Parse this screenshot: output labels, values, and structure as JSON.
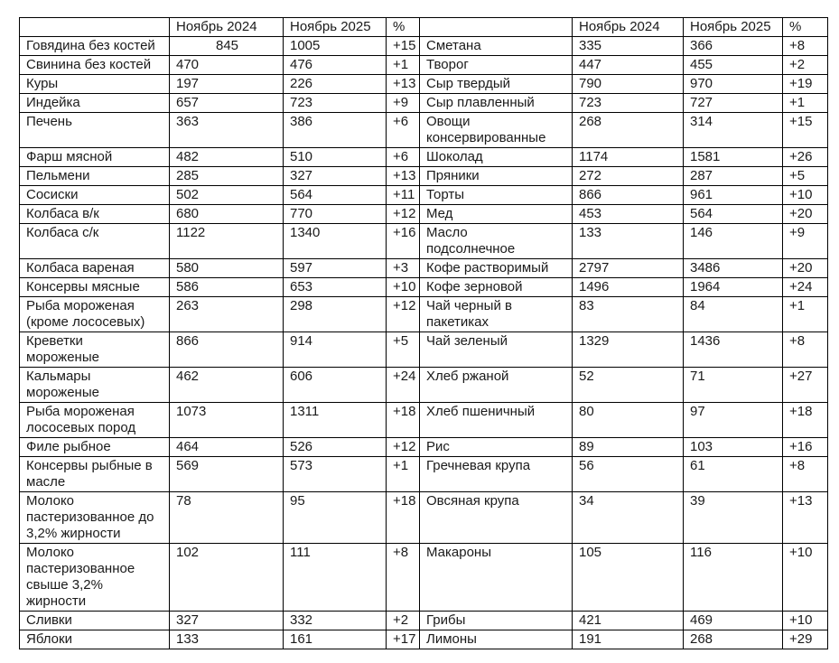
{
  "page": {
    "background_color": "#ffffff",
    "text_color": "#1a1a1a",
    "border_color": "#000000"
  },
  "table": {
    "column_headers": {
      "item": "",
      "period_2024": "Ноябрь 2024",
      "period_2025": "Ноябрь 2025",
      "percent": "%"
    },
    "rows": [
      {
        "left": {
          "name": "Говядина без костей",
          "p2024": "845",
          "p2025": "1005",
          "pct": "+15",
          "center2024": true
        },
        "right": {
          "name": "Сметана",
          "p2024": "335",
          "p2025": "366",
          "pct": "+8"
        }
      },
      {
        "left": {
          "name": "Свинина без костей",
          "p2024": "470",
          "p2025": "476",
          "pct": "+1"
        },
        "right": {
          "name": "Творог",
          "p2024": "447",
          "p2025": "455",
          "pct": "+2"
        }
      },
      {
        "left": {
          "name": "Куры",
          "p2024": "197",
          "p2025": "226",
          "pct": "+13"
        },
        "right": {
          "name": "Сыр твердый",
          "p2024": "790",
          "p2025": "970",
          "pct": "+19"
        }
      },
      {
        "left": {
          "name": "Индейка",
          "p2024": "657",
          "p2025": "723",
          "pct": "+9"
        },
        "right": {
          "name": "Сыр плавленный",
          "p2024": "723",
          "p2025": "727",
          "pct": "+1"
        }
      },
      {
        "left": {
          "name": "Печень",
          "p2024": "363",
          "p2025": "386",
          "pct": "+6"
        },
        "right": {
          "name": "Овощи\nконсервированные",
          "p2024": "268",
          "p2025": "314",
          "pct": "+15"
        }
      },
      {
        "left": {
          "name": "Фарш мясной",
          "p2024": "482",
          "p2025": "510",
          "pct": "+6"
        },
        "right": {
          "name": "Шоколад",
          "p2024": "1174",
          "p2025": "1581",
          "pct": "+26"
        }
      },
      {
        "left": {
          "name": "Пельмени",
          "p2024": "285",
          "p2025": "327",
          "pct": "+13"
        },
        "right": {
          "name": "Пряники",
          "p2024": "272",
          "p2025": "287",
          "pct": "+5"
        }
      },
      {
        "left": {
          "name": "Сосиски",
          "p2024": "502",
          "p2025": "564",
          "pct": "+11"
        },
        "right": {
          "name": "Торты",
          "p2024": "866",
          "p2025": "961",
          "pct": "+10"
        }
      },
      {
        "left": {
          "name": "Колбаса в/к",
          "p2024": "680",
          "p2025": "770",
          "pct": "+12"
        },
        "right": {
          "name": "Мед",
          "p2024": "453",
          "p2025": "564",
          "pct": "+20"
        }
      },
      {
        "left": {
          "name": "Колбаса с/к",
          "p2024": "1122",
          "p2025": "1340",
          "pct": "+16"
        },
        "right": {
          "name": "Масло\nподсолнечное",
          "p2024": "133",
          "p2025": "146",
          "pct": "+9"
        }
      },
      {
        "left": {
          "name": "Колбаса вареная",
          "p2024": "580",
          "p2025": "597",
          "pct": "+3"
        },
        "right": {
          "name": "Кофе растворимый",
          "p2024": "2797",
          "p2025": "3486",
          "pct": "+20"
        }
      },
      {
        "left": {
          "name": "Консервы мясные",
          "p2024": "586",
          "p2025": "653",
          "pct": "+10"
        },
        "right": {
          "name": "Кофе зерновой",
          "p2024": "1496",
          "p2025": "1964",
          "pct": "+24"
        }
      },
      {
        "left": {
          "name": "Рыба мороженая\n(кроме лососевых)",
          "p2024": "263",
          "p2025": "298",
          "pct": "+12"
        },
        "right": {
          "name": "Чай черный в\nпакетиках",
          "p2024": "83",
          "p2025": "84",
          "pct": "+1"
        }
      },
      {
        "left": {
          "name": "Креветки\nмороженые",
          "p2024": "866",
          "p2025": "914",
          "pct": "+5"
        },
        "right": {
          "name": "Чай зеленый",
          "p2024": "1329",
          "p2025": "1436",
          "pct": "+8"
        }
      },
      {
        "left": {
          "name": "Кальмары\nмороженые",
          "p2024": "462",
          "p2025": "606",
          "pct": "+24"
        },
        "right": {
          "name": "Хлеб ржаной",
          "p2024": "52",
          "p2025": "71",
          "pct": "+27"
        }
      },
      {
        "left": {
          "name": "Рыба мороженая\nлососевых пород",
          "p2024": "1073",
          "p2025": "1311",
          "pct": "+18"
        },
        "right": {
          "name": "Хлеб пшеничный",
          "p2024": "80",
          "p2025": "97",
          "pct": "+18"
        }
      },
      {
        "left": {
          "name": "Филе рыбное",
          "p2024": "464",
          "p2025": "526",
          "pct": "+12"
        },
        "right": {
          "name": "Рис",
          "p2024": "89",
          "p2025": "103",
          "pct": "+16"
        }
      },
      {
        "left": {
          "name": "Консервы рыбные в\nмасле",
          "p2024": "569",
          "p2025": "573",
          "pct": "+1"
        },
        "right": {
          "name": "Гречневая крупа",
          "p2024": "56",
          "p2025": "61",
          "pct": "+8"
        }
      },
      {
        "left": {
          "name": "Молоко\nпастеризованное до\n3,2% жирности",
          "p2024": "78",
          "p2025": "95",
          "pct": "+18"
        },
        "right": {
          "name": "Овсяная крупа",
          "p2024": "34",
          "p2025": "39",
          "pct": "+13"
        }
      },
      {
        "left": {
          "name": "Молоко\nпастеризованное\nсвыше 3,2%\nжирности",
          "p2024": "102",
          "p2025": "111",
          "pct": "+8"
        },
        "right": {
          "name": "Макароны",
          "p2024": "105",
          "p2025": "116",
          "pct": "+10"
        }
      },
      {
        "left": {
          "name": "Сливки",
          "p2024": "327",
          "p2025": "332",
          "pct": "+2"
        },
        "right": {
          "name": "Грибы",
          "p2024": "421",
          "p2025": "469",
          "pct": "+10"
        }
      },
      {
        "left": {
          "name": "Яблоки",
          "p2024": "133",
          "p2025": "161",
          "pct": "+17"
        },
        "right": {
          "name": "Лимоны",
          "p2024": "191",
          "p2025": "268",
          "pct": "+29"
        }
      }
    ]
  }
}
